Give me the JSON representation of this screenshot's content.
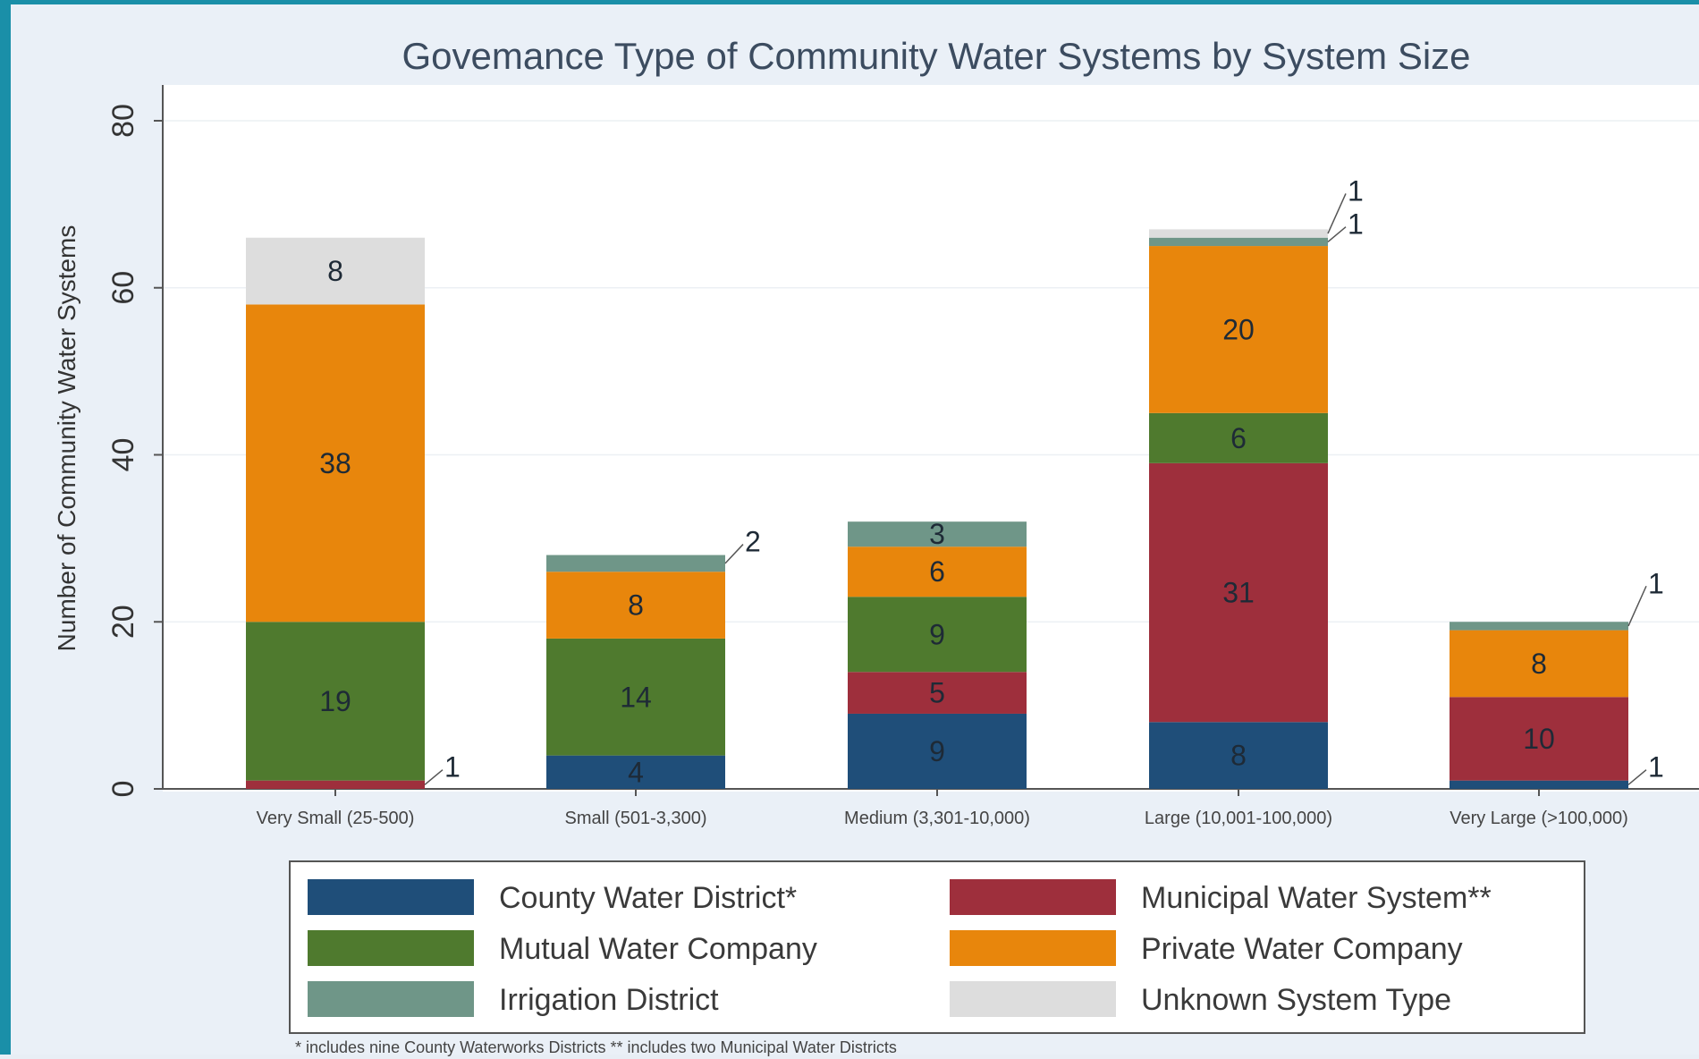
{
  "chart_data": {
    "type": "bar",
    "stacked": true,
    "title": "Govemance Type of Community Water Systems by System Size",
    "ylabel": "Number of Community Water Systems",
    "xlabel": "",
    "ylim": [
      0,
      80
    ],
    "yticks": [
      "0",
      "20",
      "40",
      "60",
      "80"
    ],
    "grid": true,
    "legend_position": "bottom",
    "categories": [
      "Very Small (25-500)",
      "Small (501-3,300)",
      "Medium (3,301-10,000)",
      "Large (10,001-100,000)",
      "Very Large (>100,000)"
    ],
    "series": [
      {
        "name": "County Water District*",
        "color": "#1f4e79",
        "values": [
          0,
          4,
          9,
          8,
          1
        ],
        "labels": [
          "",
          "4",
          "9",
          "8",
          "1"
        ]
      },
      {
        "name": "Municipal Water System**",
        "color": "#9e2f3c",
        "values": [
          1,
          0,
          5,
          31,
          10
        ],
        "labels": [
          "1",
          "",
          "5",
          "31",
          "10"
        ]
      },
      {
        "name": "Mutual Water Company",
        "color": "#4f7a2e",
        "values": [
          19,
          14,
          9,
          6,
          0
        ],
        "labels": [
          "19",
          "14",
          "9",
          "6",
          ""
        ]
      },
      {
        "name": "Private Water Company",
        "color": "#e8860c",
        "values": [
          38,
          8,
          6,
          20,
          8
        ],
        "labels": [
          "38",
          "8",
          "6",
          "20",
          "8"
        ]
      },
      {
        "name": "Irrigation District",
        "color": "#6f9688",
        "values": [
          0,
          2,
          3,
          1,
          1
        ],
        "labels": [
          "",
          "2",
          "3",
          "1",
          "1"
        ]
      },
      {
        "name": "Unknown System Type",
        "color": "#dddddd",
        "values": [
          8,
          0,
          0,
          1,
          0
        ],
        "labels": [
          "8",
          "",
          "",
          "1",
          ""
        ]
      }
    ],
    "footnote": "* includes nine County Waterworks Districts ** includes two Municipal Water Districts"
  }
}
